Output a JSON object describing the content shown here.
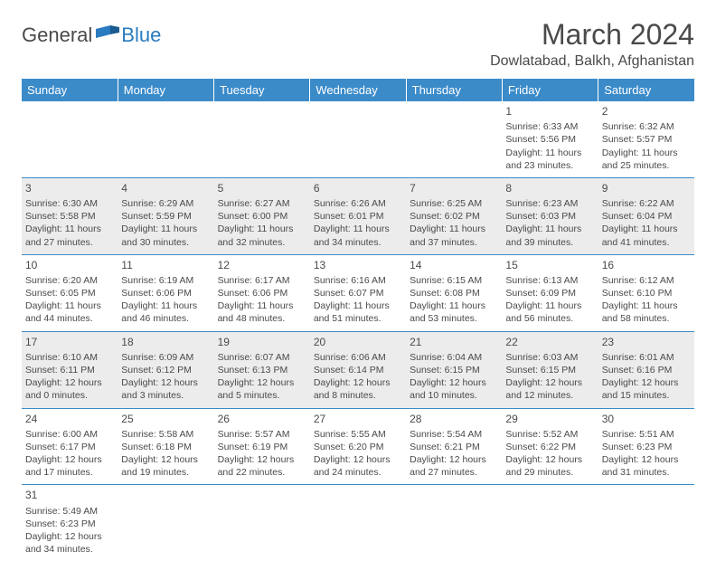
{
  "logo": {
    "word1": "General",
    "word2": "Blue"
  },
  "title": "March 2024",
  "location": "Dowlatabad, Balkh, Afghanistan",
  "colors": {
    "header_bg": "#3b8bc9",
    "header_fg": "#ffffff",
    "shaded_bg": "#ececec",
    "text": "#4a4a4a",
    "logo_blue": "#2a7bbf",
    "border": "#3b8bc9"
  },
  "typography": {
    "title_fontsize": 32,
    "location_fontsize": 16,
    "header_fontsize": 13,
    "cell_fontsize": 10.5,
    "daynum_fontsize": 12
  },
  "days": [
    "Sunday",
    "Monday",
    "Tuesday",
    "Wednesday",
    "Thursday",
    "Friday",
    "Saturday"
  ],
  "weeks": [
    [
      null,
      null,
      null,
      null,
      null,
      {
        "n": "1",
        "sr": "Sunrise: 6:33 AM",
        "ss": "Sunset: 5:56 PM",
        "dl": "Daylight: 11 hours and 23 minutes."
      },
      {
        "n": "2",
        "sr": "Sunrise: 6:32 AM",
        "ss": "Sunset: 5:57 PM",
        "dl": "Daylight: 11 hours and 25 minutes."
      }
    ],
    [
      {
        "n": "3",
        "sr": "Sunrise: 6:30 AM",
        "ss": "Sunset: 5:58 PM",
        "dl": "Daylight: 11 hours and 27 minutes."
      },
      {
        "n": "4",
        "sr": "Sunrise: 6:29 AM",
        "ss": "Sunset: 5:59 PM",
        "dl": "Daylight: 11 hours and 30 minutes."
      },
      {
        "n": "5",
        "sr": "Sunrise: 6:27 AM",
        "ss": "Sunset: 6:00 PM",
        "dl": "Daylight: 11 hours and 32 minutes."
      },
      {
        "n": "6",
        "sr": "Sunrise: 6:26 AM",
        "ss": "Sunset: 6:01 PM",
        "dl": "Daylight: 11 hours and 34 minutes."
      },
      {
        "n": "7",
        "sr": "Sunrise: 6:25 AM",
        "ss": "Sunset: 6:02 PM",
        "dl": "Daylight: 11 hours and 37 minutes."
      },
      {
        "n": "8",
        "sr": "Sunrise: 6:23 AM",
        "ss": "Sunset: 6:03 PM",
        "dl": "Daylight: 11 hours and 39 minutes."
      },
      {
        "n": "9",
        "sr": "Sunrise: 6:22 AM",
        "ss": "Sunset: 6:04 PM",
        "dl": "Daylight: 11 hours and 41 minutes."
      }
    ],
    [
      {
        "n": "10",
        "sr": "Sunrise: 6:20 AM",
        "ss": "Sunset: 6:05 PM",
        "dl": "Daylight: 11 hours and 44 minutes."
      },
      {
        "n": "11",
        "sr": "Sunrise: 6:19 AM",
        "ss": "Sunset: 6:06 PM",
        "dl": "Daylight: 11 hours and 46 minutes."
      },
      {
        "n": "12",
        "sr": "Sunrise: 6:17 AM",
        "ss": "Sunset: 6:06 PM",
        "dl": "Daylight: 11 hours and 48 minutes."
      },
      {
        "n": "13",
        "sr": "Sunrise: 6:16 AM",
        "ss": "Sunset: 6:07 PM",
        "dl": "Daylight: 11 hours and 51 minutes."
      },
      {
        "n": "14",
        "sr": "Sunrise: 6:15 AM",
        "ss": "Sunset: 6:08 PM",
        "dl": "Daylight: 11 hours and 53 minutes."
      },
      {
        "n": "15",
        "sr": "Sunrise: 6:13 AM",
        "ss": "Sunset: 6:09 PM",
        "dl": "Daylight: 11 hours and 56 minutes."
      },
      {
        "n": "16",
        "sr": "Sunrise: 6:12 AM",
        "ss": "Sunset: 6:10 PM",
        "dl": "Daylight: 11 hours and 58 minutes."
      }
    ],
    [
      {
        "n": "17",
        "sr": "Sunrise: 6:10 AM",
        "ss": "Sunset: 6:11 PM",
        "dl": "Daylight: 12 hours and 0 minutes."
      },
      {
        "n": "18",
        "sr": "Sunrise: 6:09 AM",
        "ss": "Sunset: 6:12 PM",
        "dl": "Daylight: 12 hours and 3 minutes."
      },
      {
        "n": "19",
        "sr": "Sunrise: 6:07 AM",
        "ss": "Sunset: 6:13 PM",
        "dl": "Daylight: 12 hours and 5 minutes."
      },
      {
        "n": "20",
        "sr": "Sunrise: 6:06 AM",
        "ss": "Sunset: 6:14 PM",
        "dl": "Daylight: 12 hours and 8 minutes."
      },
      {
        "n": "21",
        "sr": "Sunrise: 6:04 AM",
        "ss": "Sunset: 6:15 PM",
        "dl": "Daylight: 12 hours and 10 minutes."
      },
      {
        "n": "22",
        "sr": "Sunrise: 6:03 AM",
        "ss": "Sunset: 6:15 PM",
        "dl": "Daylight: 12 hours and 12 minutes."
      },
      {
        "n": "23",
        "sr": "Sunrise: 6:01 AM",
        "ss": "Sunset: 6:16 PM",
        "dl": "Daylight: 12 hours and 15 minutes."
      }
    ],
    [
      {
        "n": "24",
        "sr": "Sunrise: 6:00 AM",
        "ss": "Sunset: 6:17 PM",
        "dl": "Daylight: 12 hours and 17 minutes."
      },
      {
        "n": "25",
        "sr": "Sunrise: 5:58 AM",
        "ss": "Sunset: 6:18 PM",
        "dl": "Daylight: 12 hours and 19 minutes."
      },
      {
        "n": "26",
        "sr": "Sunrise: 5:57 AM",
        "ss": "Sunset: 6:19 PM",
        "dl": "Daylight: 12 hours and 22 minutes."
      },
      {
        "n": "27",
        "sr": "Sunrise: 5:55 AM",
        "ss": "Sunset: 6:20 PM",
        "dl": "Daylight: 12 hours and 24 minutes."
      },
      {
        "n": "28",
        "sr": "Sunrise: 5:54 AM",
        "ss": "Sunset: 6:21 PM",
        "dl": "Daylight: 12 hours and 27 minutes."
      },
      {
        "n": "29",
        "sr": "Sunrise: 5:52 AM",
        "ss": "Sunset: 6:22 PM",
        "dl": "Daylight: 12 hours and 29 minutes."
      },
      {
        "n": "30",
        "sr": "Sunrise: 5:51 AM",
        "ss": "Sunset: 6:23 PM",
        "dl": "Daylight: 12 hours and 31 minutes."
      }
    ],
    [
      {
        "n": "31",
        "sr": "Sunrise: 5:49 AM",
        "ss": "Sunset: 6:23 PM",
        "dl": "Daylight: 12 hours and 34 minutes."
      },
      null,
      null,
      null,
      null,
      null,
      null
    ]
  ]
}
